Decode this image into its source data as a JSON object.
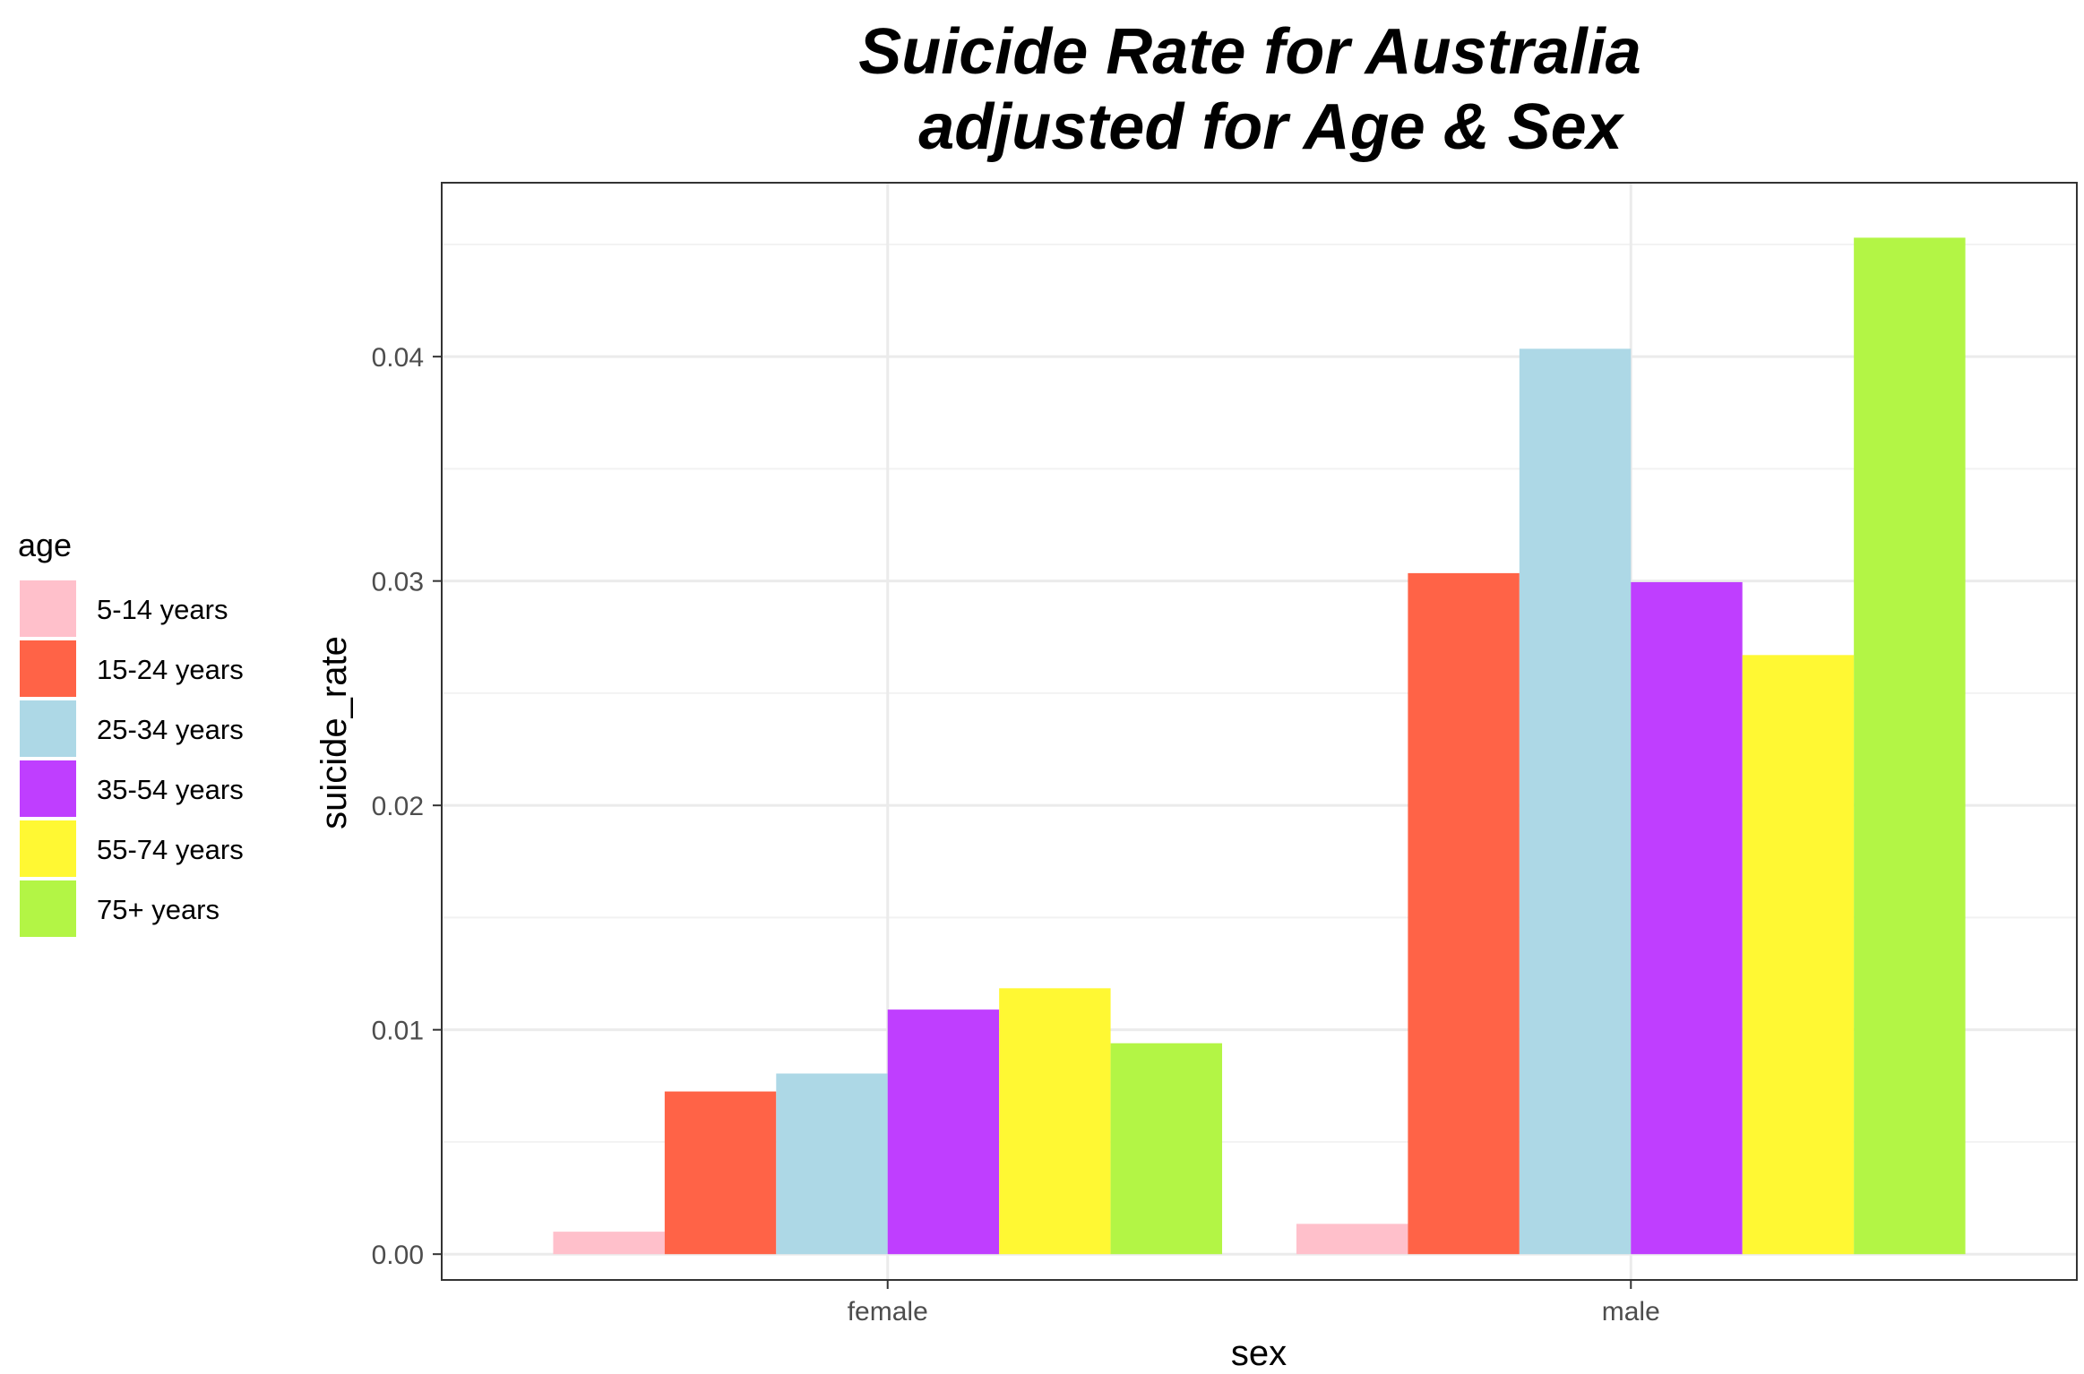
{
  "chart_data": {
    "type": "bar",
    "title_lines": [
      "Suicide Rate for Australia",
      "adjusted for Age & Sex"
    ],
    "xlabel": "sex",
    "ylabel": "suicide_rate",
    "categories": [
      "female",
      "male"
    ],
    "ylim": [
      -0.00115,
      0.04775
    ],
    "yticks": [
      0.0,
      0.01,
      0.02,
      0.03,
      0.04
    ],
    "ytick_labels": [
      "0.00",
      "0.01",
      "0.02",
      "0.03",
      "0.04"
    ],
    "grid": true,
    "legend": {
      "title": "age",
      "position": "left"
    },
    "series": [
      {
        "name": "5-14 years",
        "color": "#FFC0CB",
        "values": [
          0.001,
          0.00135
        ]
      },
      {
        "name": "15-24 years",
        "color": "#FF6347",
        "values": [
          0.00725,
          0.03035
        ]
      },
      {
        "name": "25-34 years",
        "color": "#ADD8E6",
        "values": [
          0.00805,
          0.04035
        ]
      },
      {
        "name": "35-54 years",
        "color": "#BF3EFF",
        "values": [
          0.0109,
          0.02995
        ]
      },
      {
        "name": "55-74 years",
        "color": "#FFF833",
        "values": [
          0.01185,
          0.0267
        ]
      },
      {
        "name": "75+ years",
        "color": "#B3F545",
        "values": [
          0.0094,
          0.0453
        ]
      }
    ]
  }
}
